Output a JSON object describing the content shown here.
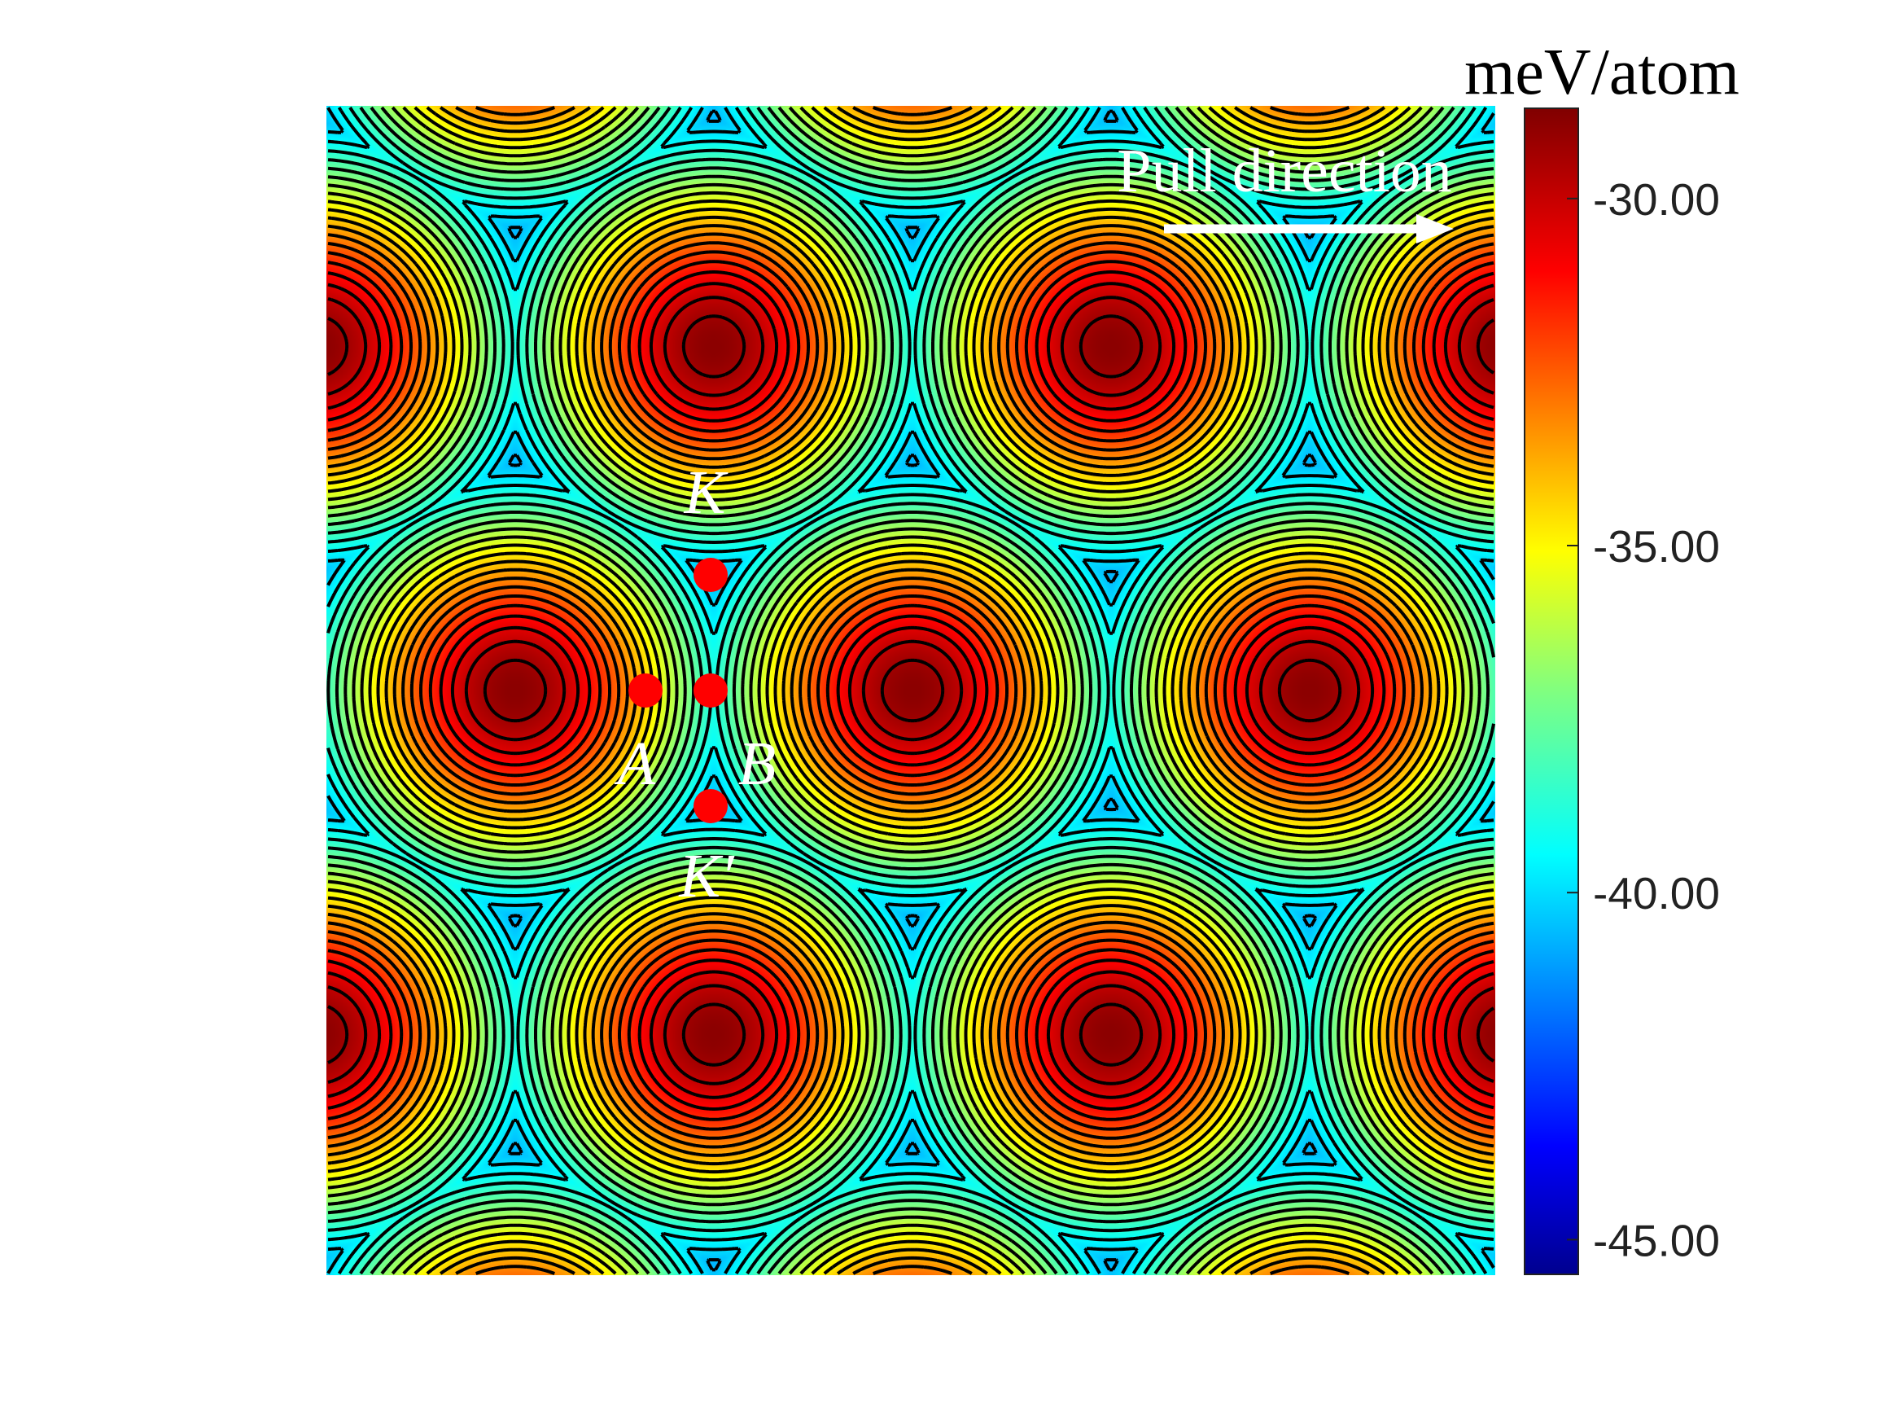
{
  "chart_data": {
    "type": "heatmap",
    "title": "",
    "xlabel": "",
    "ylabel": "",
    "colormap": "jet",
    "colorbar": {
      "label": "meV/atom",
      "range": [
        -45.5,
        -28.7
      ],
      "ticks": [
        -30.0,
        -35.0,
        -40.0,
        -45.0
      ],
      "tick_labels": [
        "-30.00",
        "-35.00",
        "-40.00",
        "-45.00"
      ],
      "placement": "right"
    },
    "contours": {
      "color": "#000000",
      "shown": true
    },
    "lattice": "hexagonal",
    "annotations": {
      "arrow_text": "Pull direction",
      "arrow_color": "#ffffff",
      "points": [
        {
          "label": "K",
          "color": "#ff0000"
        },
        {
          "label": "A",
          "color": "#ff0000"
        },
        {
          "label": "B",
          "color": "#ff0000"
        },
        {
          "label": "K′",
          "color": "#ff0000"
        }
      ]
    }
  }
}
